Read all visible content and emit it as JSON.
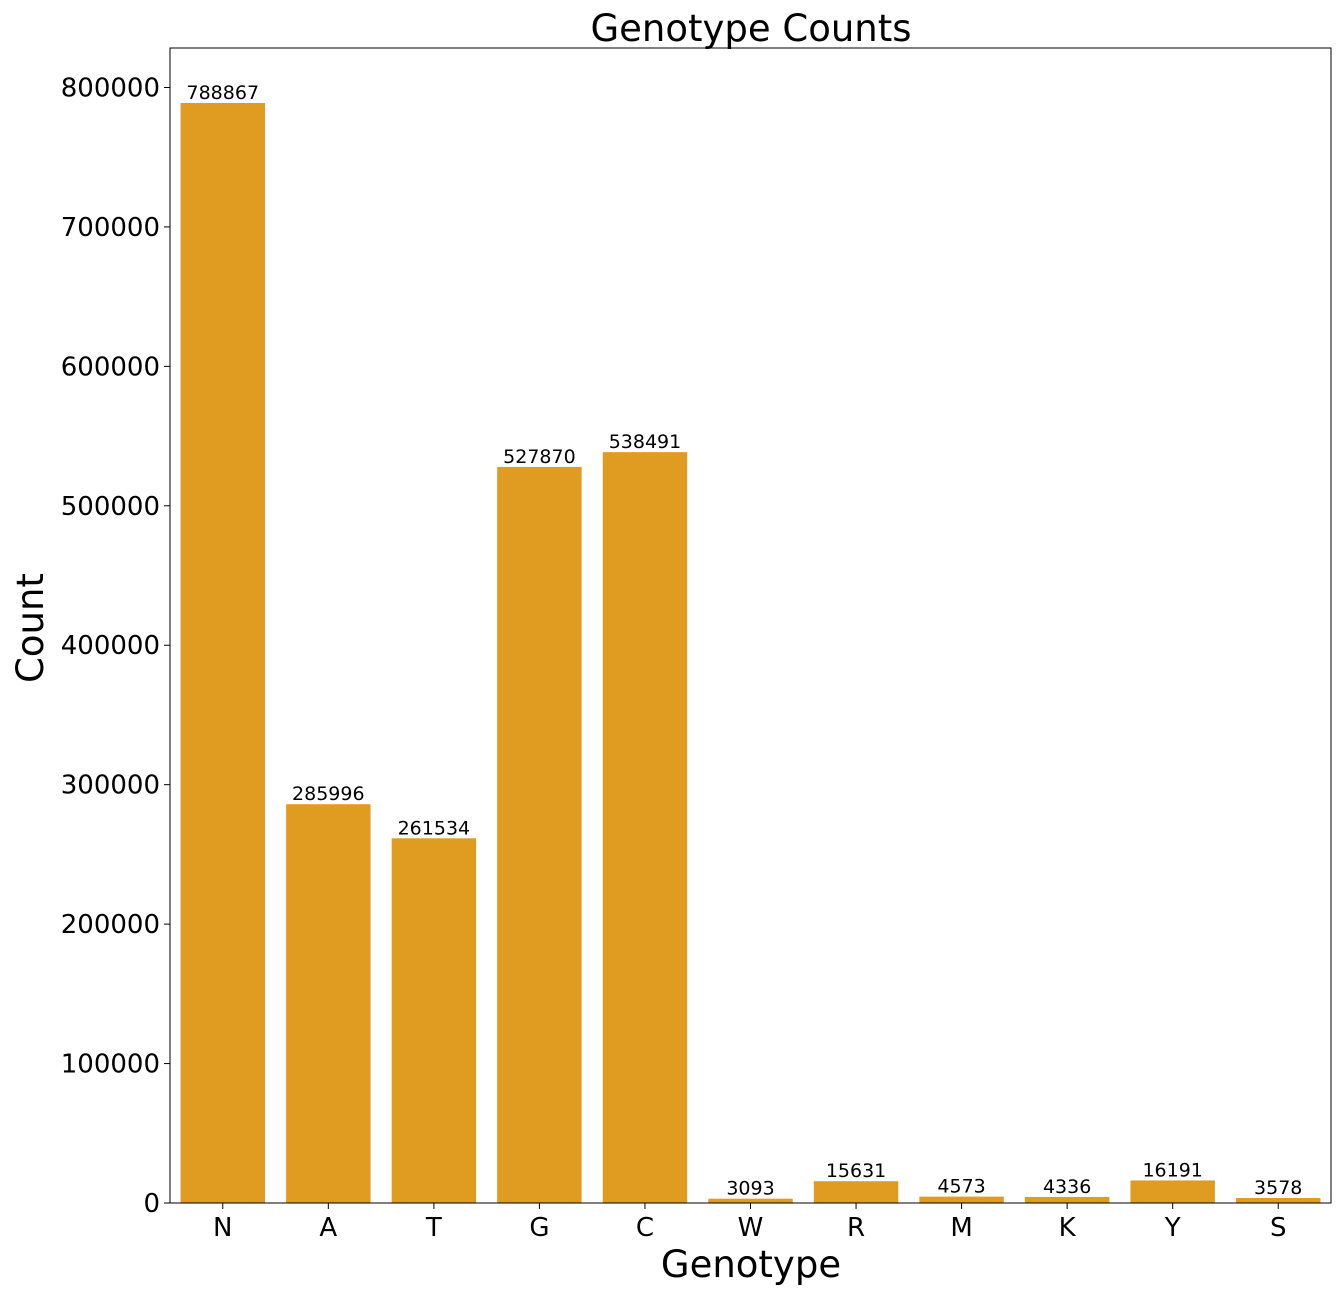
{
  "chart_data": {
    "type": "bar",
    "title": "Genotype Counts",
    "xlabel": "Genotype",
    "ylabel": "Count",
    "categories": [
      "N",
      "A",
      "T",
      "G",
      "C",
      "W",
      "R",
      "M",
      "K",
      "Y",
      "S"
    ],
    "values": [
      788867,
      285996,
      261534,
      527870,
      538491,
      3093,
      15631,
      4573,
      4336,
      16191,
      3578
    ],
    "data_labels": [
      "788867",
      "285996",
      "261534",
      "527870",
      "538491",
      "3093",
      "15631",
      "4573",
      "4336",
      "16191",
      "3578"
    ],
    "ylim": [
      0,
      828310
    ],
    "yticks": [
      0,
      100000,
      200000,
      300000,
      400000,
      500000,
      600000,
      700000,
      800000
    ],
    "ytick_labels": [
      "0",
      "100000",
      "200000",
      "300000",
      "400000",
      "500000",
      "600000",
      "700000",
      "800000"
    ],
    "grid": false,
    "legend": "none",
    "bar_color": "#e09c21"
  }
}
